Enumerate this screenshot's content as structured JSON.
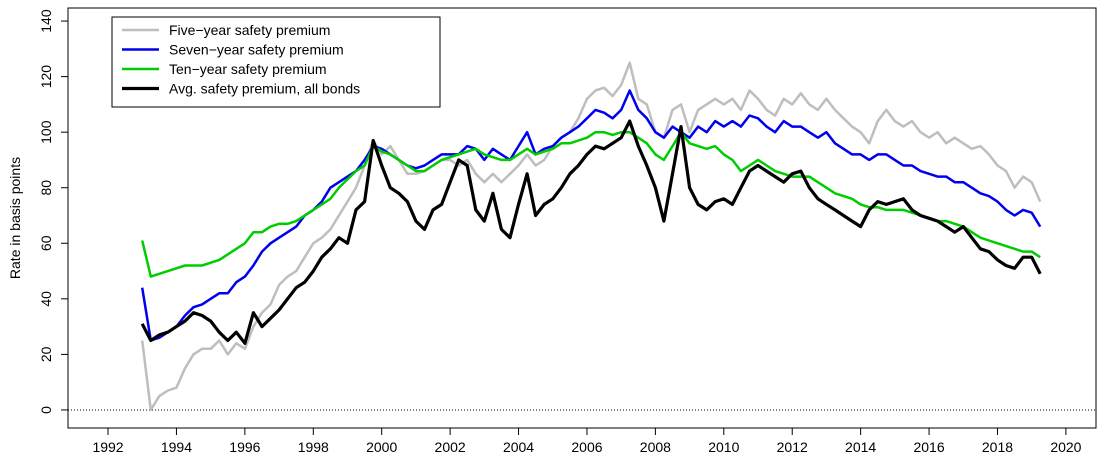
{
  "chart_data": {
    "type": "line",
    "y_label": "Rate in basis points",
    "x": [
      1993,
      1993.25,
      1993.5,
      1993.75,
      1994,
      1994.25,
      1994.5,
      1994.75,
      1995,
      1995.25,
      1995.5,
      1995.75,
      1996,
      1996.25,
      1996.5,
      1996.75,
      1997,
      1997.25,
      1997.5,
      1997.75,
      1998,
      1998.25,
      1998.5,
      1998.75,
      1999,
      1999.25,
      1999.5,
      1999.75,
      2000,
      2000.25,
      2000.5,
      2000.75,
      2001,
      2001.25,
      2001.5,
      2001.75,
      2002,
      2002.25,
      2002.5,
      2002.75,
      2003,
      2003.25,
      2003.5,
      2003.75,
      2004,
      2004.25,
      2004.5,
      2004.75,
      2005,
      2005.25,
      2005.5,
      2005.75,
      2006,
      2006.25,
      2006.5,
      2006.75,
      2007,
      2007.25,
      2007.5,
      2007.75,
      2008,
      2008.25,
      2008.5,
      2008.75,
      2009,
      2009.25,
      2009.5,
      2009.75,
      2010,
      2010.25,
      2010.5,
      2010.75,
      2011,
      2011.25,
      2011.5,
      2011.75,
      2012,
      2012.25,
      2012.5,
      2012.75,
      2013,
      2013.25,
      2013.5,
      2013.75,
      2014,
      2014.25,
      2014.5,
      2014.75,
      2015,
      2015.25,
      2015.5,
      2015.75,
      2016,
      2016.25,
      2016.5,
      2016.75,
      2017,
      2017.25,
      2017.5,
      2017.75,
      2018,
      2018.25,
      2018.5,
      2018.75,
      2019,
      2019.25
    ],
    "series": [
      {
        "name": "Five−year safety premium",
        "color": "#bebebe",
        "width": 2.5,
        "values": [
          25,
          0,
          5,
          7,
          8,
          15,
          20,
          22,
          22,
          25,
          20,
          24,
          22,
          30,
          35,
          38,
          45,
          48,
          50,
          55,
          60,
          62,
          65,
          70,
          75,
          80,
          88,
          97,
          92,
          95,
          90,
          85,
          85,
          86,
          88,
          90,
          90,
          88,
          90,
          85,
          82,
          85,
          82,
          85,
          88,
          92,
          88,
          90,
          95,
          98,
          100,
          105,
          112,
          115,
          116,
          113,
          117,
          125,
          112,
          110,
          100,
          98,
          108,
          110,
          100,
          108,
          110,
          112,
          110,
          112,
          108,
          115,
          112,
          108,
          106,
          112,
          110,
          114,
          110,
          108,
          112,
          108,
          105,
          102,
          100,
          96,
          104,
          108,
          104,
          102,
          104,
          100,
          98,
          100,
          96,
          98,
          96,
          94,
          95,
          92,
          88,
          86,
          80,
          84,
          82,
          75
        ]
      },
      {
        "name": "Seven−year safety premium",
        "color": "#0000ee",
        "width": 2.5,
        "values": [
          44,
          25,
          26,
          28,
          30,
          34,
          37,
          38,
          40,
          42,
          42,
          46,
          48,
          52,
          57,
          60,
          62,
          64,
          66,
          70,
          72,
          75,
          80,
          82,
          84,
          86,
          90,
          95,
          94,
          92,
          90,
          88,
          87,
          88,
          90,
          92,
          92,
          92,
          95,
          94,
          90,
          94,
          92,
          90,
          95,
          100,
          92,
          94,
          95,
          98,
          100,
          102,
          105,
          108,
          107,
          105,
          108,
          115,
          108,
          105,
          100,
          98,
          102,
          100,
          98,
          102,
          100,
          104,
          102,
          104,
          102,
          106,
          105,
          102,
          100,
          104,
          102,
          102,
          100,
          98,
          100,
          96,
          94,
          92,
          92,
          90,
          92,
          92,
          90,
          88,
          88,
          86,
          85,
          84,
          84,
          82,
          82,
          80,
          78,
          77,
          75,
          72,
          70,
          72,
          71,
          66
        ]
      },
      {
        "name": "Ten−year safety premium",
        "color": "#00cd00",
        "width": 2.5,
        "values": [
          61,
          48,
          49,
          50,
          51,
          52,
          52,
          52,
          53,
          54,
          56,
          58,
          60,
          64,
          64,
          66,
          67,
          67,
          68,
          70,
          72,
          74,
          76,
          80,
          83,
          86,
          88,
          95,
          93,
          92,
          90,
          88,
          86,
          86,
          88,
          90,
          91,
          92,
          93,
          94,
          92,
          91,
          90,
          90,
          92,
          94,
          92,
          93,
          94,
          96,
          96,
          97,
          98,
          100,
          100,
          99,
          100,
          100,
          98,
          96,
          92,
          90,
          95,
          100,
          96,
          95,
          94,
          95,
          92,
          90,
          86,
          88,
          90,
          88,
          86,
          85,
          84,
          84,
          84,
          82,
          80,
          78,
          77,
          76,
          74,
          73,
          73,
          72,
          72,
          72,
          71,
          70,
          69,
          68,
          68,
          67,
          66,
          64,
          62,
          61,
          60,
          59,
          58,
          57,
          57,
          55
        ]
      },
      {
        "name": "Avg. safety premium, all bonds",
        "color": "#000000",
        "width": 3.2,
        "values": [
          31,
          25,
          27,
          28,
          30,
          32,
          35,
          34,
          32,
          28,
          25,
          28,
          24,
          35,
          30,
          33,
          36,
          40,
          44,
          46,
          50,
          55,
          58,
          62,
          60,
          72,
          75,
          97,
          88,
          80,
          78,
          75,
          68,
          65,
          72,
          74,
          82,
          90,
          88,
          72,
          68,
          78,
          65,
          62,
          74,
          85,
          70,
          74,
          76,
          80,
          85,
          88,
          92,
          95,
          94,
          96,
          98,
          104,
          95,
          88,
          80,
          68,
          85,
          102,
          80,
          74,
          72,
          75,
          76,
          74,
          80,
          86,
          88,
          86,
          84,
          82,
          85,
          86,
          80,
          76,
          74,
          72,
          70,
          68,
          66,
          72,
          75,
          74,
          75,
          76,
          72,
          70,
          69,
          68,
          66,
          64,
          66,
          62,
          58,
          57,
          54,
          52,
          51,
          55,
          55,
          49
        ]
      }
    ],
    "xlim": [
      1990.83,
      2020.88
    ],
    "ylim": [
      -6.5,
      144.7
    ],
    "xticks": [
      1992,
      1994,
      1996,
      1998,
      2000,
      2002,
      2004,
      2006,
      2008,
      2010,
      2012,
      2014,
      2016,
      2018,
      2020
    ],
    "yticks": [
      0,
      20,
      40,
      60,
      80,
      100,
      120,
      140
    ],
    "reference_line": 0,
    "legend": "top-left"
  }
}
